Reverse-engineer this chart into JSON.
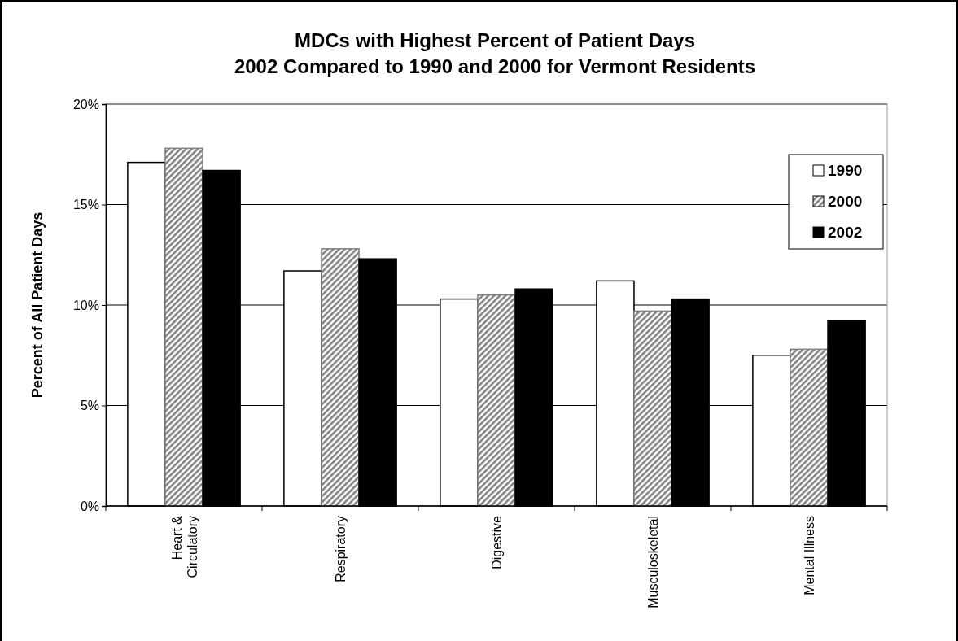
{
  "chart_data": {
    "type": "bar",
    "title": "MDCs with Highest Percent of Patient Days\n2002 Compared to 1990 and 2000 for Vermont Residents",
    "ylabel": "Percent of All Patient Days",
    "categories": [
      "Heart & Circulatory",
      "Respiratory",
      "Digestive",
      "Musculoskeletal",
      "Mental Illness"
    ],
    "series": [
      {
        "name": "1990",
        "color": "#ffffff",
        "values": [
          17.1,
          11.7,
          10.3,
          11.2,
          7.5
        ]
      },
      {
        "name": "2000",
        "color": "#808080",
        "values": [
          17.8,
          12.8,
          10.5,
          9.7,
          7.8
        ]
      },
      {
        "name": "2002",
        "color": "#000000",
        "values": [
          16.7,
          12.3,
          10.8,
          10.3,
          9.2
        ]
      }
    ],
    "ylim": [
      0,
      20
    ],
    "yticks": [
      {
        "value": 0,
        "label": "0%"
      },
      {
        "value": 5,
        "label": "5%"
      },
      {
        "value": 10,
        "label": "10%"
      },
      {
        "value": 15,
        "label": "15%"
      },
      {
        "value": 20,
        "label": "20%"
      }
    ],
    "grid": "y",
    "legend": "top right"
  }
}
